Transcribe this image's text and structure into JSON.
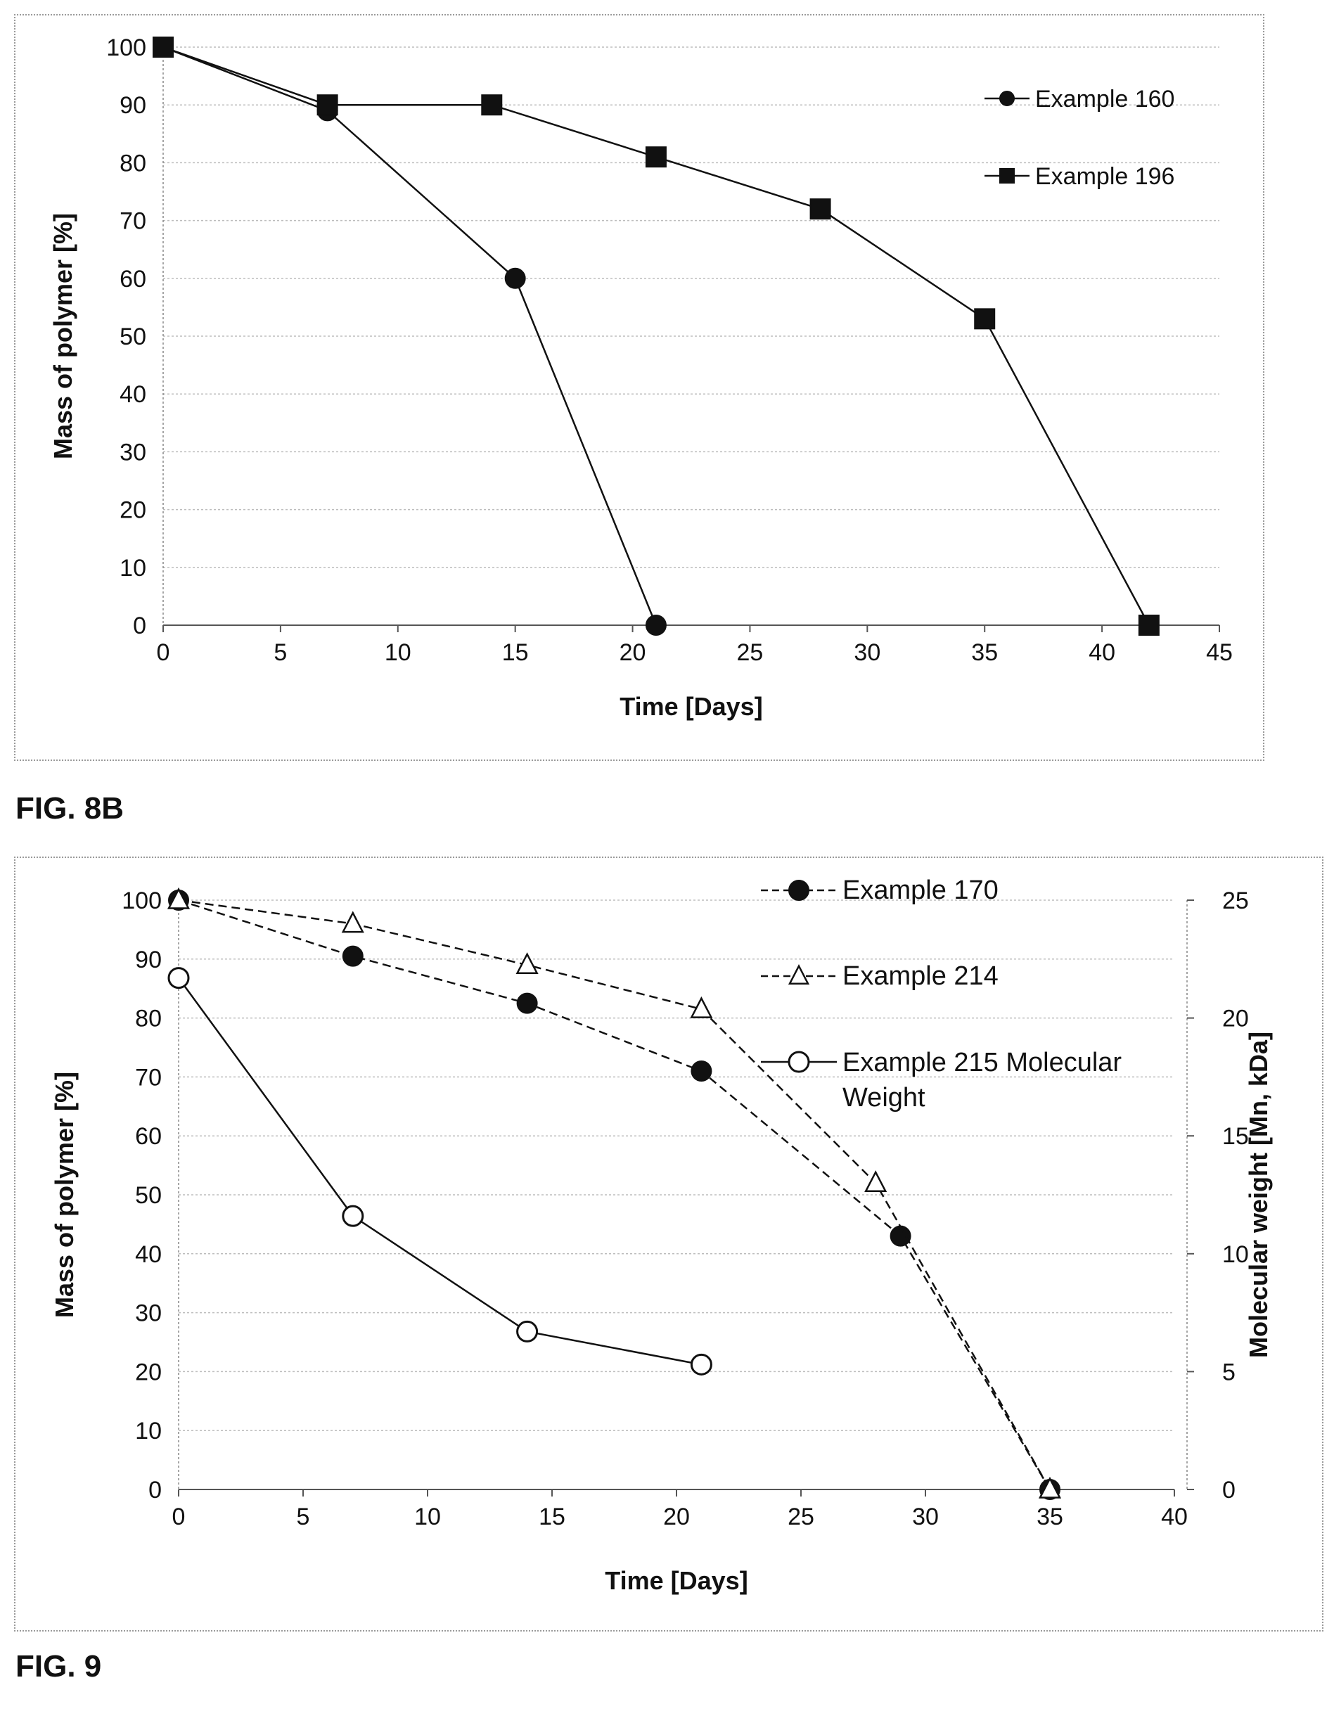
{
  "figures": {
    "fig8b_label": "FIG. 8B",
    "fig9_label": "FIG. 9"
  },
  "chart_data": [
    {
      "type": "line",
      "title": "",
      "xlabel": "Time [Days]",
      "ylabel": "Mass of polymer [%]",
      "xlim": [
        0,
        45
      ],
      "ylim": [
        0,
        100
      ],
      "xticks": [
        0,
        5,
        10,
        15,
        20,
        25,
        30,
        35,
        40,
        45
      ],
      "yticks": [
        0,
        10,
        20,
        30,
        40,
        50,
        60,
        70,
        80,
        90,
        100
      ],
      "grid": true,
      "legend": "top-right",
      "series": [
        {
          "name": "Example 160",
          "marker": "circle",
          "dash": "solid",
          "x": [
            0,
            7,
            15,
            21
          ],
          "y": [
            100,
            89,
            60,
            0
          ]
        },
        {
          "name": "Example 196",
          "marker": "square",
          "dash": "solid",
          "x": [
            0,
            7,
            14,
            21,
            28,
            35,
            42
          ],
          "y": [
            100,
            90,
            90,
            81,
            72,
            53,
            0
          ]
        }
      ]
    },
    {
      "type": "line",
      "title": "",
      "xlabel": "Time [Days]",
      "ylabel": "Mass of polymer [%]",
      "ylabel_right": "Molecular weight [Mn, kDa]",
      "xlim": [
        0,
        40
      ],
      "ylim": [
        0,
        100
      ],
      "ylim_right": [
        0,
        25
      ],
      "xticks": [
        0,
        5,
        10,
        15,
        20,
        25,
        30,
        35,
        40
      ],
      "yticks": [
        0,
        10,
        20,
        30,
        40,
        50,
        60,
        70,
        80,
        90,
        100
      ],
      "yticks_right": [
        0,
        5,
        10,
        15,
        20,
        25
      ],
      "grid": true,
      "legend": "top-right",
      "series": [
        {
          "name": "Example 170",
          "marker": "filled-circle",
          "dash": "dashed",
          "axis": "left",
          "x": [
            0,
            7,
            14,
            21,
            29,
            35
          ],
          "y": [
            100,
            90.5,
            82.5,
            71,
            43,
            0
          ]
        },
        {
          "name": "Example 214",
          "marker": "open-triangle",
          "dash": "dashed",
          "axis": "left",
          "x": [
            0,
            7,
            14,
            21,
            28,
            35
          ],
          "y": [
            100,
            96,
            89,
            81.5,
            52,
            0
          ]
        },
        {
          "name": "Example 215 Molecular Weight",
          "marker": "open-circle",
          "dash": "solid",
          "axis": "right",
          "x": [
            0,
            7,
            14,
            21
          ],
          "y": [
            21.7,
            11.6,
            6.7,
            5.3
          ]
        }
      ]
    }
  ]
}
